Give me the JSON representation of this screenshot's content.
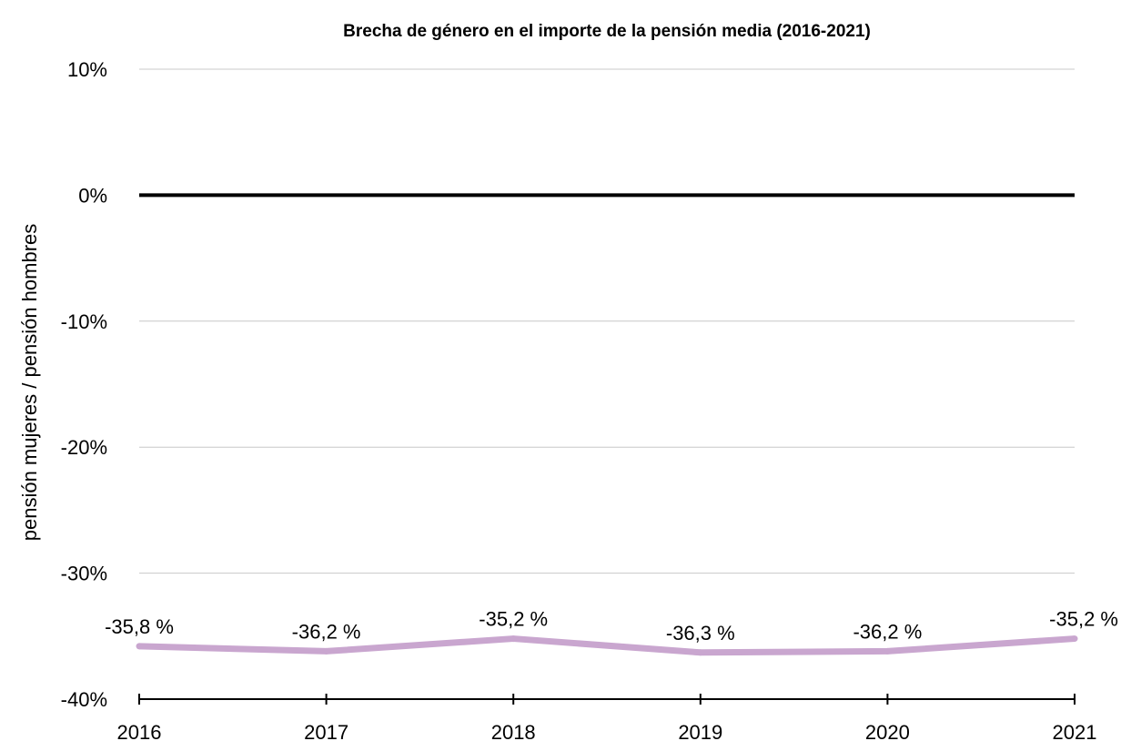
{
  "chart_data": {
    "type": "line",
    "title": "Brecha de género en el importe de la pensión media (2016-2021)",
    "xlabel": "",
    "ylabel": "pensión mujeres / pensión hombres",
    "categories": [
      "2016",
      "2017",
      "2018",
      "2019",
      "2020",
      "2021"
    ],
    "ylim": [
      -40,
      10
    ],
    "yticks": [
      10,
      0,
      -10,
      -20,
      -30,
      -40
    ],
    "ytick_labels": [
      "10%",
      "0%",
      "-10%",
      "-20%",
      "-30%",
      "-40%"
    ],
    "series": [
      {
        "values": [
          -35.8,
          -36.2,
          -35.2,
          -36.3,
          -36.2,
          -35.2
        ],
        "labels": [
          "-35,8 %",
          "-36,2 %",
          "-35,2 %",
          "-36,3 %",
          "-36,2 %",
          "-35,2 %"
        ],
        "color": "#c9a6cf"
      }
    ],
    "reference_line": {
      "value": 0,
      "color": "#000000"
    },
    "grid": true
  }
}
